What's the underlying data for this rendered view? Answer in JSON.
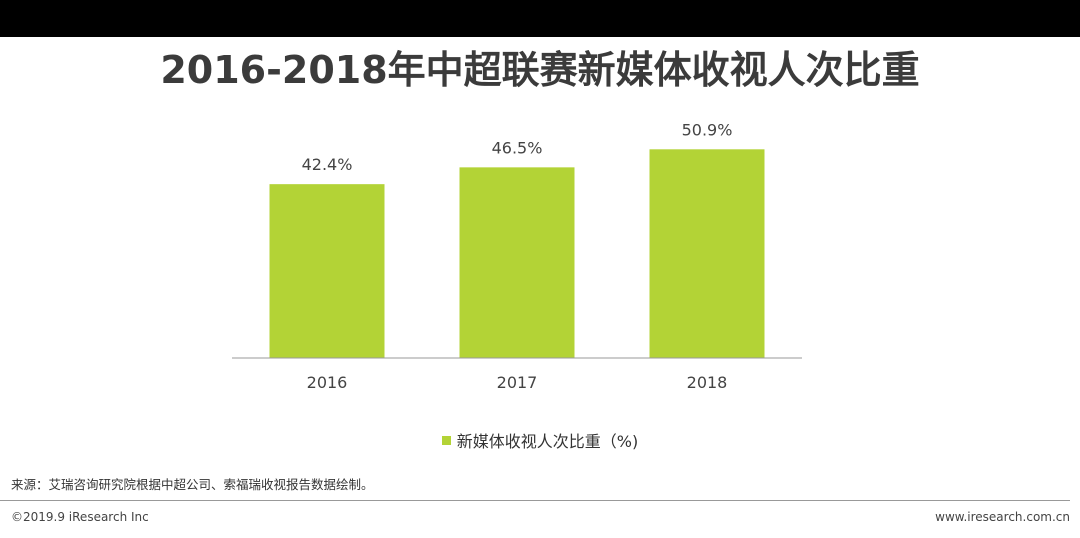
{
  "title": "2016-2018年中超联赛新媒体收视人次比重",
  "colors": {
    "bar": "#b3d336",
    "axis": "#999999",
    "top_bar": "#000000"
  },
  "chart_data": {
    "type": "bar",
    "title": "2016-2018年中超联赛新媒体收视人次比重",
    "categories": [
      "2016",
      "2017",
      "2018"
    ],
    "series": [
      {
        "name": "新媒体收视人次比重（%)",
        "values": [
          42.4,
          46.5,
          50.9
        ]
      }
    ],
    "data_labels": [
      "42.4%",
      "46.5%",
      "50.9%"
    ],
    "ylim": [
      0,
      55
    ],
    "grid": false,
    "legend_position": "bottom"
  },
  "legend": {
    "label": "新媒体收视人次比重（%)"
  },
  "footer": {
    "source": "来源：艾瑞咨询研究院根据中超公司、索福瑞收视报告数据绘制。",
    "copyright": "©2019.9 iResearch Inc",
    "website": "www.iresearch.com.cn"
  }
}
